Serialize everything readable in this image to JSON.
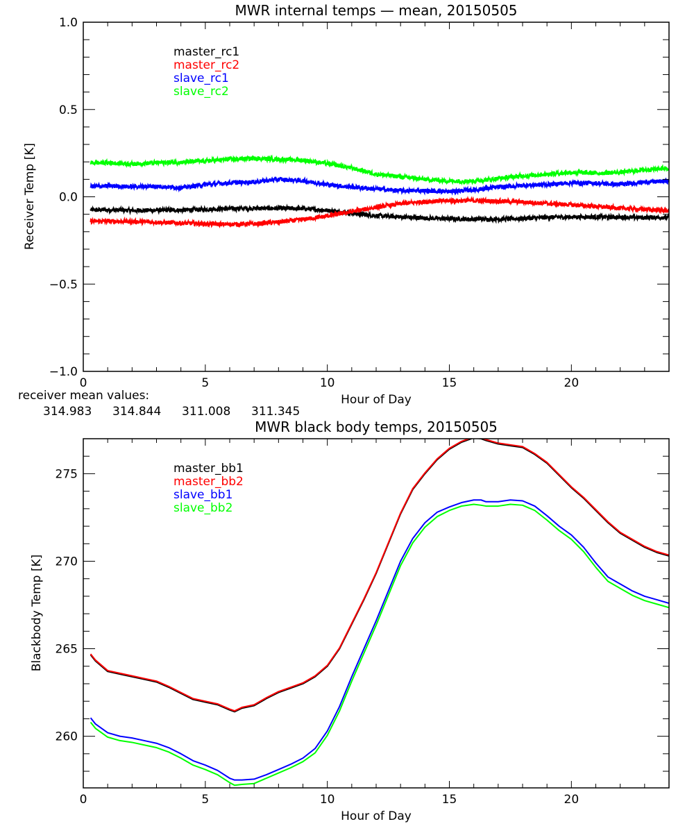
{
  "chart_data": [
    {
      "type": "line",
      "title": "MWR internal temps — mean, 20150505",
      "xlabel": "Hour of Day",
      "ylabel": "Receiver Temp [K]",
      "xlim": [
        0,
        24
      ],
      "ylim": [
        -1.0,
        1.0
      ],
      "xticks": [
        0,
        5,
        10,
        15,
        20
      ],
      "xtick_labels": [
        "0",
        "5",
        "10",
        "15",
        "20"
      ],
      "yticks": [
        -1.0,
        -0.5,
        0.0,
        0.5,
        1.0
      ],
      "ytick_labels": [
        "−1.0",
        "−0.5",
        "0.0",
        "0.5",
        "1.0"
      ],
      "grid": false,
      "legend_position": "top-left",
      "noise": 0.012,
      "x": [
        0.3,
        1,
        2,
        3,
        4,
        5,
        6,
        7,
        8,
        9,
        10,
        11,
        12,
        13,
        14,
        15,
        16,
        17,
        18,
        19,
        20,
        21,
        22,
        23,
        24
      ],
      "series": [
        {
          "name": "master_rc1",
          "color": "#000000",
          "values": [
            -0.075,
            -0.075,
            -0.078,
            -0.077,
            -0.076,
            -0.072,
            -0.068,
            -0.066,
            -0.066,
            -0.068,
            -0.078,
            -0.095,
            -0.108,
            -0.115,
            -0.122,
            -0.126,
            -0.128,
            -0.128,
            -0.124,
            -0.118,
            -0.115,
            -0.116,
            -0.117,
            -0.119,
            -0.118
          ]
        },
        {
          "name": "master_rc2",
          "color": "#ff0000",
          "values": [
            -0.14,
            -0.14,
            -0.142,
            -0.145,
            -0.15,
            -0.155,
            -0.158,
            -0.155,
            -0.145,
            -0.13,
            -0.11,
            -0.085,
            -0.06,
            -0.04,
            -0.028,
            -0.022,
            -0.022,
            -0.025,
            -0.03,
            -0.038,
            -0.046,
            -0.055,
            -0.065,
            -0.072,
            -0.08
          ]
        },
        {
          "name": "slave_rc1",
          "color": "#0000ff",
          "values": [
            0.06,
            0.062,
            0.058,
            0.06,
            0.052,
            0.07,
            0.08,
            0.085,
            0.1,
            0.092,
            0.07,
            0.055,
            0.045,
            0.035,
            0.035,
            0.03,
            0.04,
            0.055,
            0.065,
            0.07,
            0.08,
            0.078,
            0.07,
            0.085,
            0.09
          ]
        },
        {
          "name": "slave_rc2",
          "color": "#00ff00",
          "values": [
            0.195,
            0.195,
            0.188,
            0.195,
            0.198,
            0.205,
            0.215,
            0.22,
            0.215,
            0.21,
            0.19,
            0.165,
            0.13,
            0.115,
            0.1,
            0.09,
            0.09,
            0.105,
            0.12,
            0.13,
            0.14,
            0.135,
            0.14,
            0.155,
            0.165
          ]
        }
      ],
      "annotation": {
        "label": "receiver mean values:",
        "values": [
          {
            "text": "314.983",
            "color": "#000000"
          },
          {
            "text": "314.844",
            "color": "#ff0000"
          },
          {
            "text": "311.008",
            "color": "#0000ff"
          },
          {
            "text": "311.345",
            "color": "#00ff00"
          }
        ]
      }
    },
    {
      "type": "line",
      "title": "MWR black body temps, 20150505",
      "xlabel": "Hour of Day",
      "ylabel": "Blackbody Temp [K]",
      "xlim": [
        0,
        24
      ],
      "ylim": [
        257.05,
        277.0
      ],
      "xticks": [
        0,
        5,
        10,
        15,
        20
      ],
      "xtick_labels": [
        "0",
        "5",
        "10",
        "15",
        "20"
      ],
      "yticks": [
        260,
        265,
        270,
        275
      ],
      "ytick_labels": [
        "260",
        "265",
        "270",
        "275"
      ],
      "grid": false,
      "legend_position": "top-left",
      "x": [
        0.3,
        0.5,
        1,
        1.5,
        2,
        2.5,
        3,
        3.5,
        4,
        4.5,
        5,
        5.5,
        6,
        6.2,
        6.5,
        7,
        7.5,
        8,
        8.5,
        9,
        9.5,
        10,
        10.5,
        11,
        11.5,
        12,
        12.5,
        13,
        13.5,
        14,
        14.5,
        15,
        15.5,
        16,
        16.3,
        16.5,
        17,
        17.5,
        18,
        18.5,
        19,
        19.5,
        20,
        20.5,
        21,
        21.5,
        22,
        22.5,
        23,
        23.5,
        24
      ],
      "series": [
        {
          "name": "master_bb1",
          "color": "#000000",
          "values": [
            264.65,
            264.3,
            263.7,
            263.55,
            263.4,
            263.25,
            263.1,
            262.8,
            262.45,
            262.1,
            261.95,
            261.8,
            261.5,
            261.4,
            261.6,
            261.75,
            262.15,
            262.5,
            262.75,
            263.0,
            263.4,
            264.0,
            265.0,
            266.4,
            267.8,
            269.3,
            271.0,
            272.7,
            274.1,
            275.0,
            275.8,
            276.4,
            276.8,
            277.05,
            277.0,
            276.9,
            276.7,
            276.6,
            276.5,
            276.1,
            275.6,
            274.9,
            274.2,
            273.6,
            272.9,
            272.2,
            271.6,
            271.2,
            270.8,
            270.5,
            270.3
          ]
        },
        {
          "name": "master_bb2",
          "color": "#ff0000",
          "values": [
            264.7,
            264.35,
            263.75,
            263.6,
            263.45,
            263.3,
            263.15,
            262.85,
            262.5,
            262.15,
            262.0,
            261.85,
            261.55,
            261.45,
            261.65,
            261.8,
            262.2,
            262.55,
            262.8,
            263.05,
            263.45,
            264.05,
            265.05,
            266.45,
            267.85,
            269.35,
            271.05,
            272.75,
            274.15,
            275.05,
            275.85,
            276.45,
            276.85,
            277.1,
            277.05,
            276.95,
            276.75,
            276.65,
            276.55,
            276.15,
            275.65,
            274.95,
            274.25,
            273.65,
            272.95,
            272.25,
            271.65,
            271.25,
            270.85,
            270.55,
            270.35
          ]
        },
        {
          "name": "slave_bb1",
          "color": "#0000ff",
          "values": [
            261.05,
            260.7,
            260.2,
            260.0,
            259.9,
            259.75,
            259.6,
            259.35,
            259.0,
            258.6,
            258.35,
            258.05,
            257.6,
            257.5,
            257.5,
            257.55,
            257.8,
            258.1,
            258.4,
            258.75,
            259.3,
            260.3,
            261.7,
            263.4,
            265.0,
            266.6,
            268.3,
            270.0,
            271.3,
            272.2,
            272.8,
            273.1,
            273.35,
            273.5,
            273.5,
            273.4,
            273.4,
            273.5,
            273.45,
            273.15,
            272.6,
            272.0,
            271.5,
            270.8,
            269.9,
            269.1,
            268.7,
            268.3,
            268.0,
            267.8,
            267.6
          ]
        },
        {
          "name": "slave_bb2",
          "color": "#00ff00",
          "values": [
            260.8,
            260.45,
            259.95,
            259.75,
            259.65,
            259.5,
            259.35,
            259.1,
            258.75,
            258.35,
            258.1,
            257.8,
            257.35,
            257.2,
            257.25,
            257.3,
            257.6,
            257.9,
            258.2,
            258.55,
            259.05,
            260.05,
            261.45,
            263.15,
            264.75,
            266.35,
            268.05,
            269.75,
            271.05,
            271.95,
            272.55,
            272.9,
            273.15,
            273.25,
            273.2,
            273.15,
            273.15,
            273.25,
            273.2,
            272.9,
            272.35,
            271.75,
            271.25,
            270.55,
            269.65,
            268.85,
            268.45,
            268.05,
            267.75,
            267.55,
            267.35
          ]
        }
      ]
    }
  ]
}
